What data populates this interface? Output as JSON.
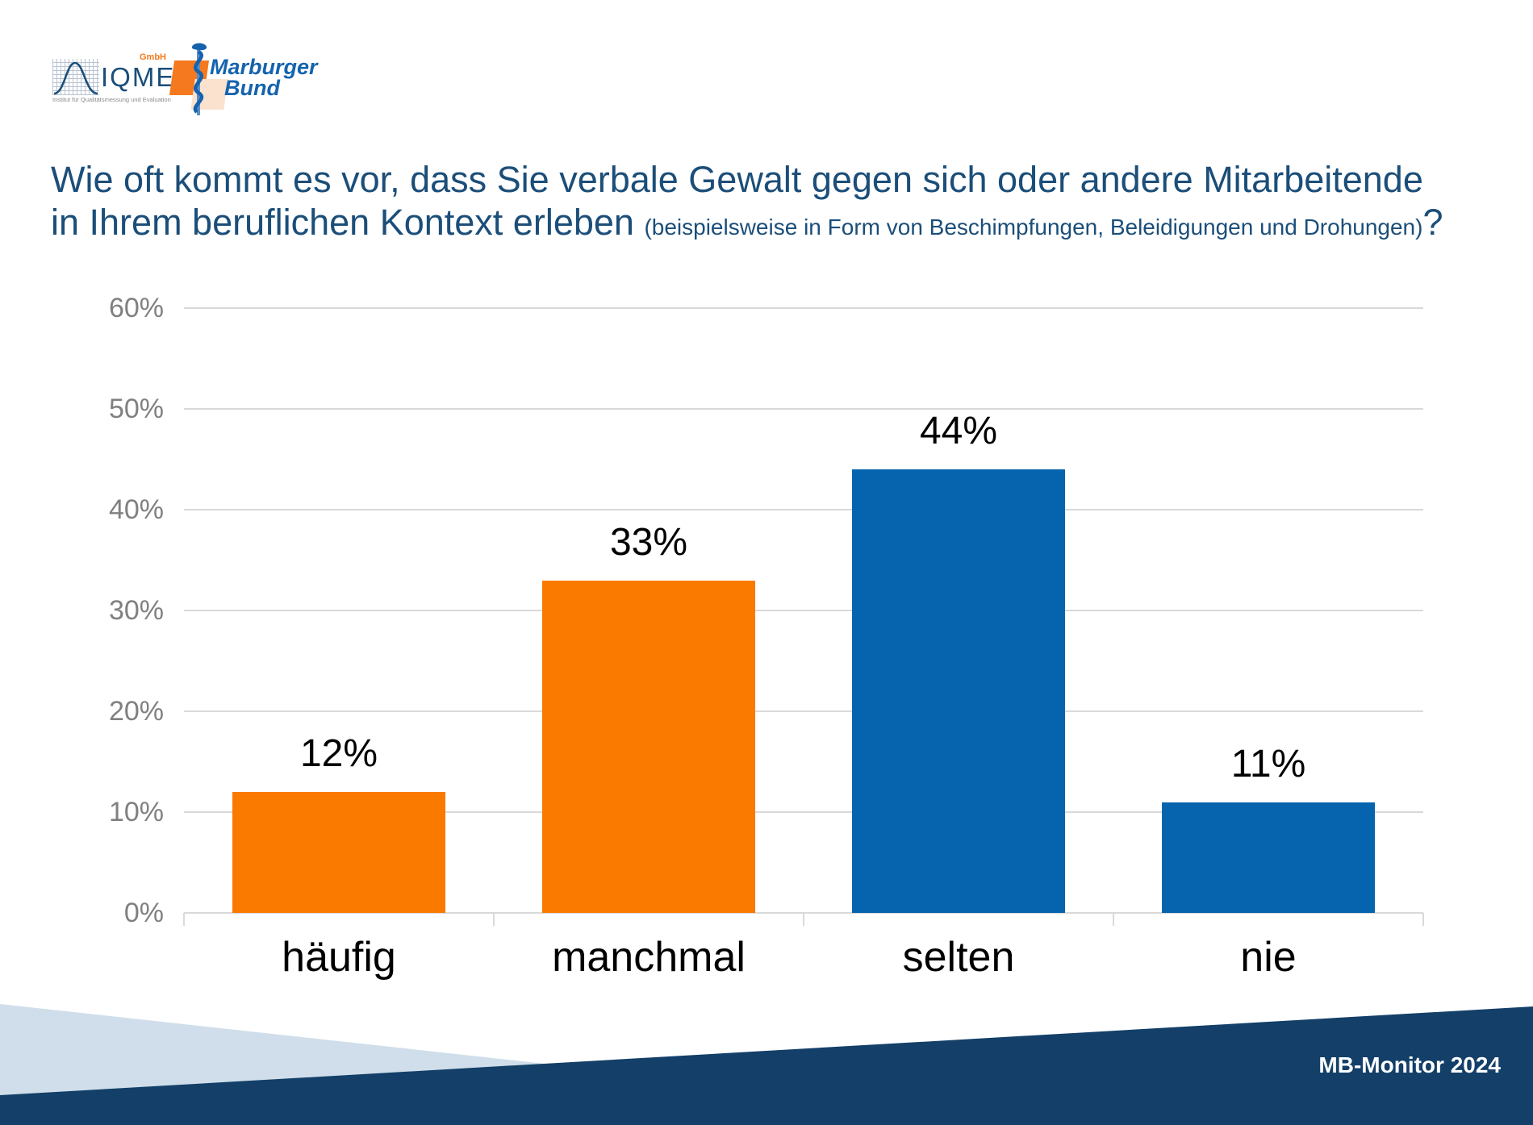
{
  "header": {
    "iqme_logo": {
      "word": "IQME",
      "gmbh": "GmbH",
      "subtitle": "Institut für Qualitätsmessung und Evaluation"
    },
    "mb_logo": {
      "line1": "Marburger",
      "line2": "Bund"
    }
  },
  "title": {
    "line1": "Wie oft kommt es vor, dass Sie verbale Gewalt gegen sich oder andere Mitarbeitende",
    "line2_main": "in Ihrem beruflichen Kontext erleben ",
    "line2_small": "(beispielsweise in Form von Beschimpfungen, Beleidigungen und Drohungen)",
    "line2_end": "?"
  },
  "chart_data": {
    "type": "bar",
    "title": "Wie oft kommt es vor, dass Sie verbale Gewalt gegen sich oder andere Mitarbeitende in Ihrem beruflichen Kontext erleben (beispielsweise in Form von Beschimpfungen, Beleidigungen und Drohungen)?",
    "categories": [
      "häufig",
      "manchmal",
      "selten",
      "nie"
    ],
    "values": [
      12,
      33,
      44,
      11
    ],
    "value_labels": [
      "12%",
      "33%",
      "44%",
      "11%"
    ],
    "bar_colors": [
      "#fa7a00",
      "#fa7a00",
      "#0664af",
      "#0664af"
    ],
    "ytick_values": [
      0,
      10,
      20,
      30,
      40,
      50,
      60
    ],
    "ytick_labels": [
      "0%",
      "10%",
      "20%",
      "30%",
      "40%",
      "50%",
      "60%"
    ],
    "ylim": [
      0,
      60
    ],
    "xlabel": "",
    "ylabel": "",
    "grid": true,
    "legend": false
  },
  "footer": {
    "label": "MB-Monitor 2024"
  },
  "colors": {
    "bar_orange": "#fa7a00",
    "bar_blue": "#0664af",
    "title_blue": "#1b4e79",
    "footer_navy": "#133f68",
    "footer_lightblue": "#cfdeea",
    "gridline_gray": "#d9d9d9",
    "axis_text_gray": "#808080",
    "logo_orange": "#f4791f",
    "logo_peach": "#fbe2ce",
    "logo_blue": "#1563ae"
  }
}
